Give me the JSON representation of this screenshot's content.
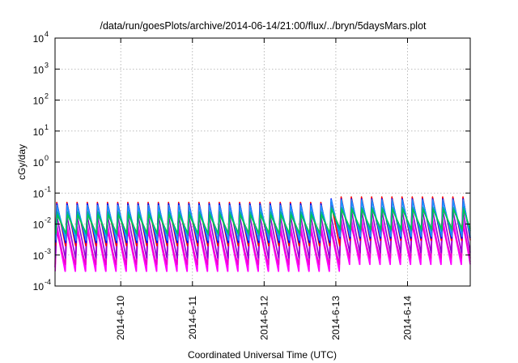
{
  "chart_data": {
    "type": "line",
    "title": "/data/run/goesPlots/archive/2014-06-14/21:00/flux/../bryn/5daysMars.plot",
    "xlabel": "Coordinated Universal Time (UTC)",
    "ylabel": "cGy/day",
    "x_range": [
      "2014-06-09T02:00",
      "2014-06-14T21:00"
    ],
    "y_scale": "log",
    "ylim": [
      0.0001,
      10000
    ],
    "grid": true,
    "legend": "none",
    "y_ticks": [
      {
        "base": "10",
        "exp": "-4",
        "value": 0.0001
      },
      {
        "base": "10",
        "exp": "-3",
        "value": 0.001
      },
      {
        "base": "10",
        "exp": "-2",
        "value": 0.01
      },
      {
        "base": "10",
        "exp": "-1",
        "value": 0.1
      },
      {
        "base": "10",
        "exp": "0",
        "value": 1
      },
      {
        "base": "10",
        "exp": "1",
        "value": 10
      },
      {
        "base": "10",
        "exp": "2",
        "value": 100
      },
      {
        "base": "10",
        "exp": "3",
        "value": 1000
      },
      {
        "base": "10",
        "exp": "4",
        "value": 10000
      }
    ],
    "x_ticks": [
      {
        "label": "2014-6-10",
        "value": "2014-06-10T00:00"
      },
      {
        "label": "2014-6-11",
        "value": "2014-06-11T00:00"
      },
      {
        "label": "2014-6-12",
        "value": "2014-06-12T00:00"
      },
      {
        "label": "2014-6-13",
        "value": "2014-06-13T00:00"
      },
      {
        "label": "2014-6-14",
        "value": "2014-06-14T00:00"
      }
    ],
    "oscillation_period_hours": 3.4,
    "series": [
      {
        "color": "#ff00ff",
        "peak_before": 0.012,
        "trough_before": 0.0004,
        "peak_after": 0.018,
        "trough_after": 0.0006
      },
      {
        "color": "#ff00ff",
        "peak_before": 0.008,
        "trough_before": 0.0003,
        "peak_after": 0.012,
        "trough_after": 0.0005
      },
      {
        "color": "#ee00cc",
        "peak_before": 0.006,
        "trough_before": 0.0005,
        "peak_after": 0.009,
        "trough_after": 0.0008
      },
      {
        "color": "#9400d3",
        "peak_before": 0.02,
        "trough_before": 0.0008,
        "peak_after": 0.03,
        "trough_after": 0.0012
      },
      {
        "color": "#ff0000",
        "peak_before": 0.05,
        "trough_before": 0.002,
        "peak_after": 0.075,
        "trough_after": 0.003
      },
      {
        "color": "#0000ff",
        "peak_before": 0.045,
        "trough_before": 0.0025,
        "peak_after": 0.065,
        "trough_after": 0.0035
      },
      {
        "color": "#1e90ff",
        "peak_before": 0.04,
        "trough_before": 0.003,
        "peak_after": 0.06,
        "trough_after": 0.004
      },
      {
        "color": "#00aaaa",
        "peak_before": 0.025,
        "trough_before": 0.0045,
        "peak_after": 0.035,
        "trough_after": 0.006
      },
      {
        "color": "#00c853",
        "peak_before": 0.02,
        "trough_before": 0.005,
        "peak_after": 0.03,
        "trough_after": 0.007
      }
    ],
    "level_shift_at": "2014-06-12T22:00"
  }
}
